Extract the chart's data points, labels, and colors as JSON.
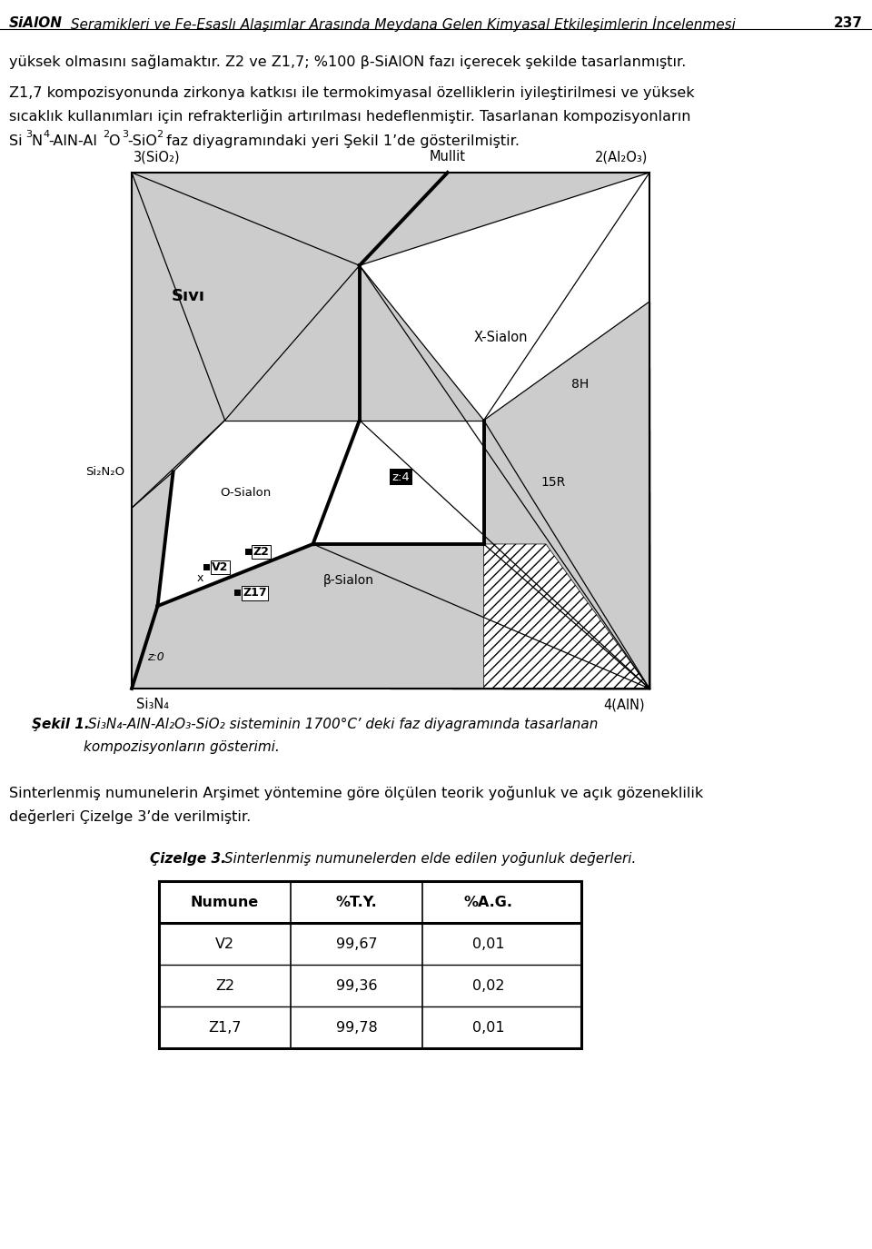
{
  "header_sialon": "SiAlON",
  "header_rest": " Seramikleri ve Fe-Esaslı Alaşımlar Arasında Meydana Gelen Kimyasal Etkileşimlerin İncelenmesi",
  "header_page": "237",
  "para1": "yüksek olmasını sağlamaktır. Z2 ve Z1,7; %100 β-SiAlON fazı içerecek şekilde tasarlanmıştır.",
  "para2_line1": "Z1,7 kompozisyonunda zirkonya katkısı ile termokimyasal özelliklerin iyileştirilmesi ve yüksek",
  "para2_line2": "sıcaklık kullanımları için refrakterliğin artırılması hedeflenmiştir. Tasarlanan kompozisyonların",
  "para2_line3_rest": " faz diyagramındaki yeri Şekil 1’de gösterilmiştir.",
  "caption_bold": "Şekil 1.",
  "caption_text": " Si₃N₄-AlN-Al₂O₃-SiO₂ sisteminin 1700°C’ deki faz diyagramında tasarlanan",
  "caption_line2": "kompozisyonların gösterimi.",
  "para3_line1": "Sinterlenmiş numunelerin Arşimet yöntemine göre ölçülen teorik yoğunluk ve açık gözeneklilik",
  "para3_line2": "değerleri Çizelge 3’de verilmiştir.",
  "table_title_bold": "Çizelge 3.",
  "table_title_text": " Sinterlenmiş numunelerden elde edilen yoğunluk değerleri.",
  "table_headers": [
    "Numune",
    "%T.Y.",
    "%A.G."
  ],
  "table_rows": [
    [
      "V2",
      "99,67",
      "0,01"
    ],
    [
      "Z2",
      "99,36",
      "0,02"
    ],
    [
      "Z1,7",
      "99,78",
      "0,01"
    ]
  ],
  "bg_color": "#ffffff"
}
